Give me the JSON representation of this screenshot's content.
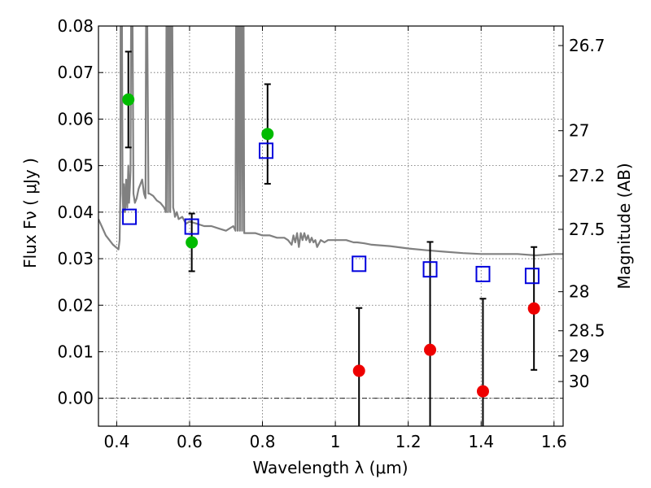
{
  "chart_data": {
    "type": "scatter",
    "xlabel": "Wavelength  λ (μm)",
    "ylabel": "Flux  Fν  ( μJy )",
    "ylabel_right": "Magnitude (AB)",
    "xlim": [
      0.35,
      1.625
    ],
    "ylim": [
      -0.006,
      0.08
    ],
    "grid": true,
    "x_ticks": [
      0.4,
      0.6,
      0.8,
      1.0,
      1.2,
      1.4,
      1.6
    ],
    "x_tick_labels": [
      "0.4",
      "0.6",
      "0.8",
      "1",
      "1.2",
      "1.4",
      "1.6"
    ],
    "y_ticks": [
      0.0,
      0.01,
      0.02,
      0.03,
      0.04,
      0.05,
      0.06,
      0.07,
      0.08
    ],
    "y_tick_labels": [
      "0.00",
      "0.01",
      "0.02",
      "0.03",
      "0.04",
      "0.05",
      "0.06",
      "0.07",
      "0.08"
    ],
    "right_ticks": [
      {
        "label": "26.7",
        "flux": 0.0758
      },
      {
        "label": "27",
        "flux": 0.0575
      },
      {
        "label": "27.2",
        "flux": 0.0478
      },
      {
        "label": "27.5",
        "flux": 0.0363
      },
      {
        "label": "28",
        "flux": 0.0229
      },
      {
        "label": "28.5",
        "flux": 0.0145
      },
      {
        "label": "29",
        "flux": 0.0091
      },
      {
        "label": "30",
        "flux": 0.0036
      }
    ],
    "series": [
      {
        "name": "green detections",
        "color": "#00bb00",
        "points": [
          {
            "x": 0.432,
            "y": 0.0642,
            "err": 0.0103
          },
          {
            "x": 0.606,
            "y": 0.0335,
            "err": 0.0062
          },
          {
            "x": 0.814,
            "y": 0.0568,
            "err": 0.0107
          }
        ]
      },
      {
        "name": "red measurements",
        "color": "#ee0000",
        "points": [
          {
            "x": 1.065,
            "y": 0.0059,
            "err": 0.0135
          },
          {
            "x": 1.26,
            "y": 0.0104,
            "err": 0.0232
          },
          {
            "x": 1.405,
            "y": 0.0015,
            "err": 0.0199
          },
          {
            "x": 1.545,
            "y": 0.0193,
            "err": 0.0132
          }
        ]
      },
      {
        "name": "model photometry",
        "color": "#0000dd",
        "marker": "open-square",
        "points": [
          {
            "x": 0.435,
            "y": 0.039
          },
          {
            "x": 0.606,
            "y": 0.0369
          },
          {
            "x": 0.81,
            "y": 0.0532
          },
          {
            "x": 1.065,
            "y": 0.0289
          },
          {
            "x": 1.26,
            "y": 0.0277
          },
          {
            "x": 1.405,
            "y": 0.0267
          },
          {
            "x": 1.54,
            "y": 0.0263
          }
        ]
      },
      {
        "name": "model spectrum",
        "color": "#808080",
        "type": "line",
        "x": [
          0.35,
          0.37,
          0.39,
          0.405,
          0.408,
          0.41,
          0.411,
          0.414,
          0.416,
          0.418,
          0.42,
          0.423,
          0.426,
          0.429,
          0.432,
          0.434,
          0.436,
          0.438,
          0.44,
          0.443,
          0.446,
          0.45,
          0.455,
          0.46,
          0.465,
          0.47,
          0.475,
          0.479,
          0.481,
          0.483,
          0.487,
          0.49,
          0.5,
          0.51,
          0.52,
          0.53,
          0.535,
          0.537,
          0.539,
          0.541,
          0.543,
          0.545,
          0.547,
          0.549,
          0.552,
          0.555,
          0.558,
          0.56,
          0.565,
          0.57,
          0.58,
          0.59,
          0.6,
          0.62,
          0.64,
          0.66,
          0.68,
          0.7,
          0.72,
          0.726,
          0.728,
          0.73,
          0.732,
          0.734,
          0.736,
          0.738,
          0.74,
          0.742,
          0.744,
          0.746,
          0.748,
          0.75,
          0.755,
          0.76,
          0.78,
          0.8,
          0.82,
          0.84,
          0.86,
          0.87,
          0.88,
          0.885,
          0.89,
          0.895,
          0.9,
          0.905,
          0.91,
          0.915,
          0.92,
          0.925,
          0.93,
          0.935,
          0.94,
          0.945,
          0.95,
          0.96,
          0.97,
          0.98,
          1.0,
          1.03,
          1.05,
          1.06,
          1.08,
          1.1,
          1.15,
          1.2,
          1.25,
          1.3,
          1.35,
          1.4,
          1.45,
          1.5,
          1.55,
          1.6,
          1.625
        ],
        "y": [
          0.0385,
          0.035,
          0.033,
          0.032,
          0.034,
          0.044,
          0.09,
          0.09,
          0.044,
          0.04,
          0.046,
          0.04,
          0.047,
          0.041,
          0.05,
          0.042,
          0.045,
          0.049,
          0.09,
          0.09,
          0.044,
          0.042,
          0.043,
          0.045,
          0.046,
          0.047,
          0.044,
          0.043,
          0.09,
          0.09,
          0.044,
          0.044,
          0.0435,
          0.0425,
          0.042,
          0.041,
          0.04,
          0.09,
          0.09,
          0.04,
          0.09,
          0.09,
          0.04,
          0.09,
          0.09,
          0.041,
          0.04,
          0.039,
          0.04,
          0.0385,
          0.039,
          0.0375,
          0.038,
          0.0375,
          0.037,
          0.037,
          0.0365,
          0.036,
          0.037,
          0.036,
          0.09,
          0.09,
          0.036,
          0.09,
          0.09,
          0.036,
          0.09,
          0.09,
          0.036,
          0.09,
          0.09,
          0.0355,
          0.0355,
          0.0355,
          0.0355,
          0.035,
          0.035,
          0.0345,
          0.0345,
          0.034,
          0.033,
          0.035,
          0.0335,
          0.0355,
          0.0325,
          0.0355,
          0.034,
          0.0355,
          0.034,
          0.035,
          0.0335,
          0.0345,
          0.0335,
          0.034,
          0.0325,
          0.034,
          0.0335,
          0.034,
          0.034,
          0.034,
          0.0335,
          0.0335,
          0.0333,
          0.033,
          0.0327,
          0.0322,
          0.0318,
          0.0315,
          0.0312,
          0.031,
          0.031,
          0.031,
          0.0307,
          0.031,
          0.031
        ]
      }
    ]
  }
}
